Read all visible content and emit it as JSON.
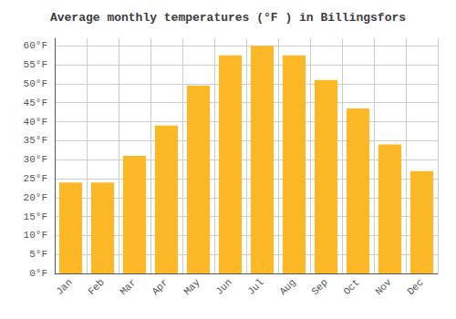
{
  "chart_data": {
    "type": "bar",
    "title": "Average monthly temperatures (°F ) in Billingsfors",
    "categories": [
      "Jan",
      "Feb",
      "Mar",
      "Apr",
      "May",
      "Jun",
      "Jul",
      "Aug",
      "Sep",
      "Oct",
      "Nov",
      "Dec"
    ],
    "values": [
      24.0,
      24.0,
      31.0,
      39.0,
      49.5,
      57.5,
      60.0,
      57.5,
      51.0,
      43.5,
      34.0,
      27.0
    ],
    "color": "#FDB827",
    "ylim": [
      0,
      62
    ],
    "yticks": [
      {
        "value": 0,
        "label": "0°F"
      },
      {
        "value": 5,
        "label": "5°F"
      },
      {
        "value": 10,
        "label": "10°F"
      },
      {
        "value": 15,
        "label": "15°F"
      },
      {
        "value": 20,
        "label": "20°F"
      },
      {
        "value": 25,
        "label": "25°F"
      },
      {
        "value": 30,
        "label": "30°F"
      },
      {
        "value": 35,
        "label": "35°F"
      },
      {
        "value": 40,
        "label": "40°F"
      },
      {
        "value": 45,
        "label": "45°F"
      },
      {
        "value": 50,
        "label": "50°F"
      },
      {
        "value": 55,
        "label": "55°F"
      },
      {
        "value": 60,
        "label": "60°F"
      }
    ],
    "grid": true
  }
}
